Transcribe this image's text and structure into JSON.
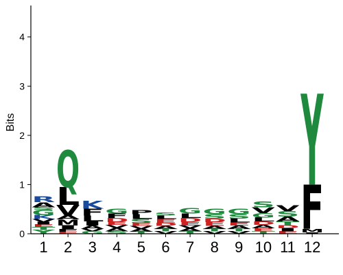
{
  "chart_data": {
    "type": "sequence_logo",
    "ylabel": "Bits",
    "ylim": [
      0,
      4.5
    ],
    "yticks": [
      0,
      1,
      2,
      3,
      4
    ],
    "positions": [
      "1",
      "2",
      "3",
      "4",
      "5",
      "6",
      "7",
      "8",
      "9",
      "10",
      "11",
      "12"
    ],
    "colors": {
      "hydrophobic": "#000000",
      "polar": "#1f8a3d",
      "basic": "#1a4a9c",
      "acidic": "#cc2222",
      "amide": "#7a3f8f"
    },
    "stacks": [
      [
        {
          "letter": "Y",
          "bits": 0.08,
          "color": "#1f8a3d"
        },
        {
          "letter": "T",
          "bits": 0.06,
          "color": "#1f8a3d"
        },
        {
          "letter": "E",
          "bits": 0.05,
          "color": "#cc2222"
        },
        {
          "letter": "I",
          "bits": 0.05,
          "color": "#000000"
        },
        {
          "letter": "V",
          "bits": 0.06,
          "color": "#000000"
        },
        {
          "letter": "K",
          "bits": 0.08,
          "color": "#1a4a9c"
        },
        {
          "letter": "G",
          "bits": 0.11,
          "color": "#1f8a3d"
        },
        {
          "letter": "S",
          "bits": 0.05,
          "color": "#1f8a3d"
        },
        {
          "letter": "A",
          "bits": 0.1,
          "color": "#000000"
        },
        {
          "letter": "R",
          "bits": 0.12,
          "color": "#1a4a9c"
        }
      ],
      [
        {
          "letter": "E",
          "bits": 0.04,
          "color": "#cc2222"
        },
        {
          "letter": "F",
          "bits": 0.05,
          "color": "#000000"
        },
        {
          "letter": "I",
          "bits": 0.08,
          "color": "#000000"
        },
        {
          "letter": "M",
          "bits": 0.12,
          "color": "#000000"
        },
        {
          "letter": "A",
          "bits": 0.08,
          "color": "#000000"
        },
        {
          "letter": "V",
          "bits": 0.22,
          "color": "#000000"
        },
        {
          "letter": "L",
          "bits": 0.36,
          "color": "#000000"
        },
        {
          "letter": "Q",
          "bits": 0.75,
          "color": "#1f8a3d"
        }
      ],
      [
        {
          "letter": "G",
          "bits": 0.05,
          "color": "#1f8a3d"
        },
        {
          "letter": "V",
          "bits": 0.05,
          "color": "#000000"
        },
        {
          "letter": "A",
          "bits": 0.07,
          "color": "#000000"
        },
        {
          "letter": "I",
          "bits": 0.08,
          "color": "#000000"
        },
        {
          "letter": "L",
          "bits": 0.12,
          "color": "#000000"
        },
        {
          "letter": "F",
          "bits": 0.14,
          "color": "#000000"
        },
        {
          "letter": "K",
          "bits": 0.16,
          "color": "#1a4a9c"
        }
      ],
      [
        {
          "letter": "S",
          "bits": 0.05,
          "color": "#1f8a3d"
        },
        {
          "letter": "A",
          "bits": 0.07,
          "color": "#000000"
        },
        {
          "letter": "V",
          "bits": 0.06,
          "color": "#000000"
        },
        {
          "letter": "E",
          "bits": 0.06,
          "color": "#cc2222"
        },
        {
          "letter": "D",
          "bits": 0.08,
          "color": "#cc2222"
        },
        {
          "letter": "F",
          "bits": 0.09,
          "color": "#000000"
        },
        {
          "letter": "G",
          "bits": 0.1,
          "color": "#1f8a3d"
        }
      ],
      [
        {
          "letter": "T",
          "bits": 0.04,
          "color": "#1f8a3d"
        },
        {
          "letter": "A",
          "bits": 0.06,
          "color": "#000000"
        },
        {
          "letter": "V",
          "bits": 0.06,
          "color": "#000000"
        },
        {
          "letter": "E",
          "bits": 0.06,
          "color": "#cc2222"
        },
        {
          "letter": "S",
          "bits": 0.08,
          "color": "#1f8a3d"
        },
        {
          "letter": "L",
          "bits": 0.1,
          "color": "#000000"
        },
        {
          "letter": "P",
          "bits": 0.08,
          "color": "#000000"
        }
      ],
      [
        {
          "letter": "V",
          "bits": 0.05,
          "color": "#000000"
        },
        {
          "letter": "T",
          "bits": 0.05,
          "color": "#1f8a3d"
        },
        {
          "letter": "A",
          "bits": 0.06,
          "color": "#000000"
        },
        {
          "letter": "D",
          "bits": 0.06,
          "color": "#cc2222"
        },
        {
          "letter": "E",
          "bits": 0.08,
          "color": "#cc2222"
        },
        {
          "letter": "L",
          "bits": 0.07,
          "color": "#000000"
        },
        {
          "letter": "S",
          "bits": 0.06,
          "color": "#1f8a3d"
        }
      ],
      [
        {
          "letter": "T",
          "bits": 0.05,
          "color": "#1f8a3d"
        },
        {
          "letter": "A",
          "bits": 0.06,
          "color": "#000000"
        },
        {
          "letter": "V",
          "bits": 0.06,
          "color": "#000000"
        },
        {
          "letter": "E",
          "bits": 0.07,
          "color": "#cc2222"
        },
        {
          "letter": "D",
          "bits": 0.08,
          "color": "#cc2222"
        },
        {
          "letter": "L",
          "bits": 0.09,
          "color": "#000000"
        },
        {
          "letter": "G",
          "bits": 0.11,
          "color": "#1f8a3d"
        }
      ],
      [
        {
          "letter": "V",
          "bits": 0.05,
          "color": "#000000"
        },
        {
          "letter": "T",
          "bits": 0.05,
          "color": "#1f8a3d"
        },
        {
          "letter": "A",
          "bits": 0.06,
          "color": "#000000"
        },
        {
          "letter": "E",
          "bits": 0.08,
          "color": "#cc2222"
        },
        {
          "letter": "D",
          "bits": 0.07,
          "color": "#cc2222"
        },
        {
          "letter": "S",
          "bits": 0.09,
          "color": "#1f8a3d"
        },
        {
          "letter": "G",
          "bits": 0.11,
          "color": "#1f8a3d"
        }
      ],
      [
        {
          "letter": "V",
          "bits": 0.05,
          "color": "#000000"
        },
        {
          "letter": "T",
          "bits": 0.05,
          "color": "#1f8a3d"
        },
        {
          "letter": "A",
          "bits": 0.07,
          "color": "#000000"
        },
        {
          "letter": "E",
          "bits": 0.06,
          "color": "#cc2222"
        },
        {
          "letter": "L",
          "bits": 0.08,
          "color": "#000000"
        },
        {
          "letter": "S",
          "bits": 0.09,
          "color": "#1f8a3d"
        },
        {
          "letter": "G",
          "bits": 0.11,
          "color": "#1f8a3d"
        }
      ],
      [
        {
          "letter": "T",
          "bits": 0.05,
          "color": "#1f8a3d"
        },
        {
          "letter": "E",
          "bits": 0.06,
          "color": "#cc2222"
        },
        {
          "letter": "A",
          "bits": 0.07,
          "color": "#000000"
        },
        {
          "letter": "D",
          "bits": 0.07,
          "color": "#cc2222"
        },
        {
          "letter": "L",
          "bits": 0.08,
          "color": "#000000"
        },
        {
          "letter": "G",
          "bits": 0.09,
          "color": "#1f8a3d"
        },
        {
          "letter": "V",
          "bits": 0.12,
          "color": "#000000"
        },
        {
          "letter": "S",
          "bits": 0.12,
          "color": "#1f8a3d"
        }
      ],
      [
        {
          "letter": "E",
          "bits": 0.05,
          "color": "#cc2222"
        },
        {
          "letter": "I",
          "bits": 0.06,
          "color": "#000000"
        },
        {
          "letter": "D",
          "bits": 0.06,
          "color": "#cc2222"
        },
        {
          "letter": "T",
          "bits": 0.08,
          "color": "#1f8a3d"
        },
        {
          "letter": "A",
          "bits": 0.1,
          "color": "#000000"
        },
        {
          "letter": "S",
          "bits": 0.11,
          "color": "#1f8a3d"
        },
        {
          "letter": "V",
          "bits": 0.12,
          "color": "#000000"
        }
      ],
      [
        {
          "letter": "I",
          "bits": 0.03,
          "color": "#000000"
        },
        {
          "letter": "M",
          "bits": 0.07,
          "color": "#000000"
        },
        {
          "letter": "F",
          "bits": 0.9,
          "color": "#000000"
        },
        {
          "letter": "Y",
          "bits": 1.85,
          "color": "#1f8a3d"
        }
      ]
    ]
  }
}
